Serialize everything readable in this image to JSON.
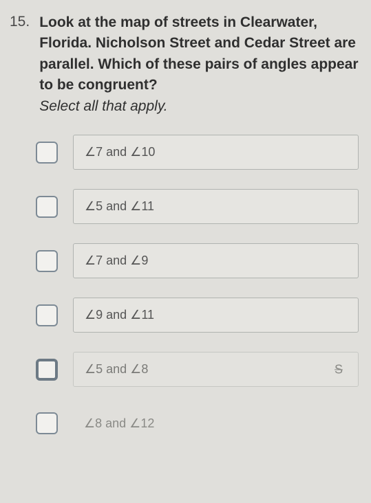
{
  "question": {
    "number": "15.",
    "text_parts": {
      "p1": "Look at the map of streets in Clearwater, Florida. Nicholson Street and Cedar Street are parallel. ",
      "p2": "Which of these pairs of angles appear to be congruent?",
      "p3": "Select all that apply."
    }
  },
  "options": [
    {
      "label": "∠7 and ∠10",
      "checked": false,
      "style": "normal"
    },
    {
      "label": "∠5 and ∠11",
      "checked": false,
      "style": "normal"
    },
    {
      "label": "∠7 and ∠9",
      "checked": false,
      "style": "normal"
    },
    {
      "label": "∠9 and ∠11",
      "checked": false,
      "style": "normal"
    },
    {
      "label": "∠5 and ∠8",
      "checked": false,
      "style": "faded",
      "thick": true,
      "strike": "S"
    },
    {
      "label": "∠8 and ∠12",
      "checked": false,
      "style": "noborder"
    }
  ],
  "colors": {
    "page_bg": "#e0dfdb",
    "text": "#3a3a3a",
    "checkbox_border": "#7d8a95",
    "option_border": "#b0b3b0",
    "option_bg": "#e6e5e1"
  }
}
